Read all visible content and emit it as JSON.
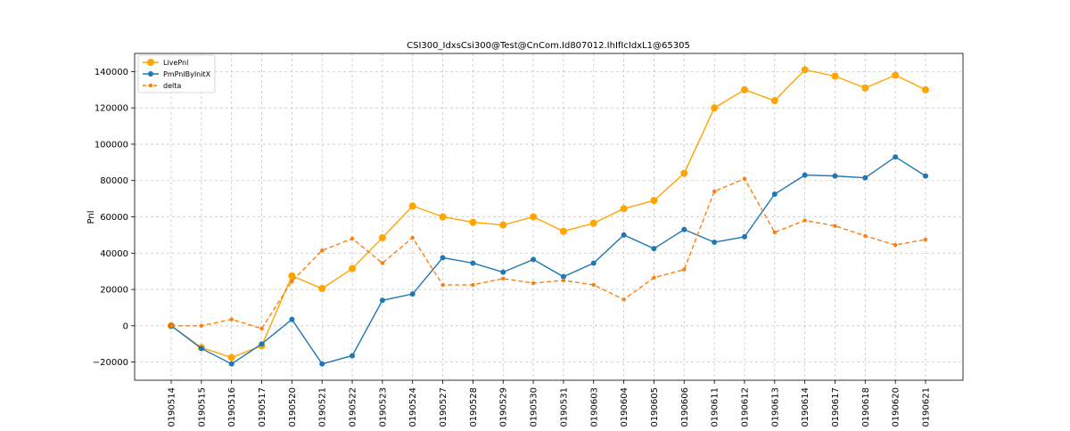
{
  "chart_data": {
    "type": "line",
    "title": "CSI300_IdxsCsi300@Test@CnCom.Id807012.IhIfIcIdxL1@65305",
    "xlabel": "",
    "ylabel": "Pnl",
    "ylim": [
      -30000,
      150000
    ],
    "yticks": [
      -20000,
      0,
      20000,
      40000,
      60000,
      80000,
      100000,
      120000,
      140000
    ],
    "ytick_labels": [
      "−20000",
      "0",
      "20000",
      "40000",
      "60000",
      "80000",
      "100000",
      "120000",
      "140000"
    ],
    "grid": true,
    "legend_position": "top-left",
    "categories": [
      "20190514",
      "20190515",
      "20190516",
      "20190517",
      "20190520",
      "20190521",
      "20190522",
      "20190523",
      "20190524",
      "20190527",
      "20190528",
      "20190529",
      "20190530",
      "20190531",
      "20190603",
      "20190604",
      "20190605",
      "20190606",
      "20190611",
      "20190612",
      "20190613",
      "20190614",
      "20190617",
      "20190618",
      "20190620",
      "20190621"
    ],
    "series": [
      {
        "name": "LivePnl",
        "color": "#ffa500",
        "style": "solid",
        "marker": "circle-large",
        "values": [
          0,
          -12000,
          -17500,
          -11000,
          27500,
          20500,
          31500,
          48500,
          66000,
          60000,
          57000,
          55500,
          60000,
          52000,
          56500,
          64500,
          69000,
          84000,
          120000,
          130000,
          124000,
          141000,
          137500,
          131000,
          138000,
          130000
        ]
      },
      {
        "name": "PmPnlByInitX",
        "color": "#1f77b4",
        "style": "solid",
        "marker": "circle",
        "values": [
          0,
          -12500,
          -21000,
          -10000,
          3500,
          -21000,
          -16500,
          14000,
          17500,
          37500,
          34500,
          29500,
          36500,
          27000,
          34500,
          50000,
          42500,
          53000,
          46000,
          49000,
          72500,
          83000,
          82500,
          81500,
          93000,
          82500
        ]
      },
      {
        "name": "delta",
        "color": "#ff7f0e",
        "style": "dashed",
        "marker": "circle-small",
        "values": [
          0,
          0,
          3500,
          -1500,
          24500,
          41500,
          48000,
          34500,
          48500,
          22500,
          22500,
          26000,
          23500,
          25000,
          22500,
          14500,
          26500,
          31000,
          74000,
          81000,
          51500,
          58000,
          55000,
          49500,
          44500,
          47500
        ]
      }
    ]
  }
}
